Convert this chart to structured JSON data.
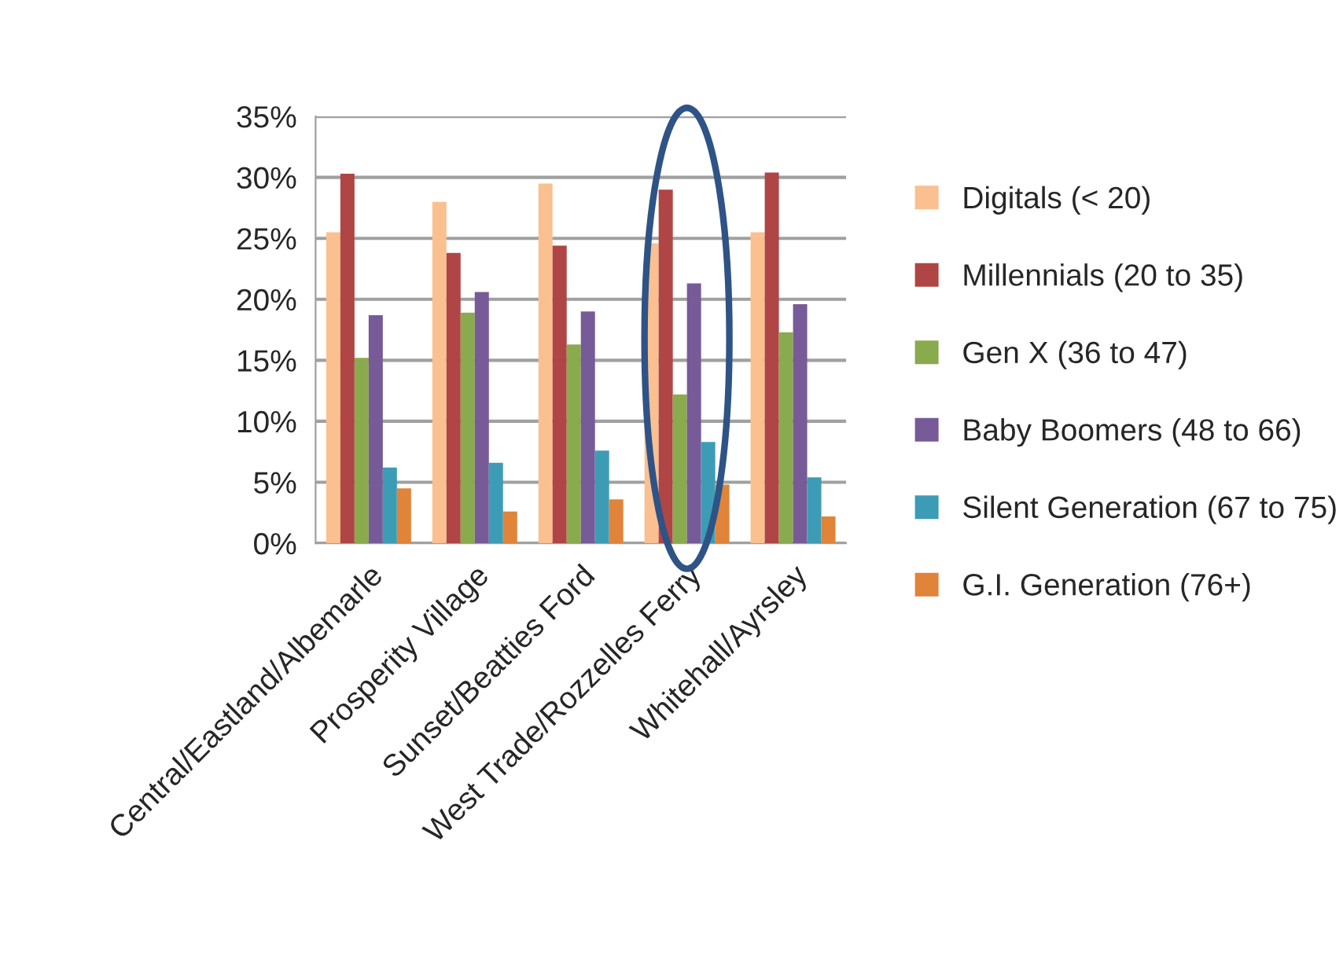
{
  "chart_data": {
    "type": "bar",
    "categories": [
      "Central/Eastland/Albemarle",
      "Prosperity Village",
      "Sunset/Beatties Ford",
      "West Trade/Rozzelles Ferry",
      "Whitehall/Ayrsley"
    ],
    "series": [
      {
        "name": "Digitals (< 20)",
        "color": "#fac090",
        "values": [
          25.5,
          28.0,
          29.5,
          24.6,
          25.5
        ]
      },
      {
        "name": "Millennials (20 to 35)",
        "color": "#b04545",
        "values": [
          30.3,
          23.8,
          24.4,
          29.0,
          30.4
        ]
      },
      {
        "name": "Gen X (36 to 47)",
        "color": "#8aaa4e",
        "values": [
          15.2,
          18.9,
          16.3,
          12.2,
          17.3
        ]
      },
      {
        "name": "Baby Boomers (48 to 66)",
        "color": "#775a98",
        "values": [
          18.7,
          20.6,
          19.0,
          21.3,
          19.6
        ]
      },
      {
        "name": "Silent Generation (67 to 75)",
        "color": "#3d9cb5",
        "values": [
          6.2,
          6.6,
          7.6,
          8.3,
          5.4
        ]
      },
      {
        "name": "G.I. Generation (76+)",
        "color": "#e0843a",
        "values": [
          4.5,
          2.6,
          3.6,
          4.8,
          2.2
        ]
      }
    ],
    "ylim": [
      0,
      35
    ],
    "yticks": [
      {
        "value": 0,
        "label": "0%"
      },
      {
        "value": 5,
        "label": "5%"
      },
      {
        "value": 10,
        "label": "10%"
      },
      {
        "value": 15,
        "label": "15%"
      },
      {
        "value": 20,
        "label": "20%"
      },
      {
        "value": 25,
        "label": "25%"
      },
      {
        "value": 30,
        "label": "30%"
      },
      {
        "value": 35,
        "label": "35%"
      }
    ],
    "grid": "y",
    "legend": "right"
  }
}
